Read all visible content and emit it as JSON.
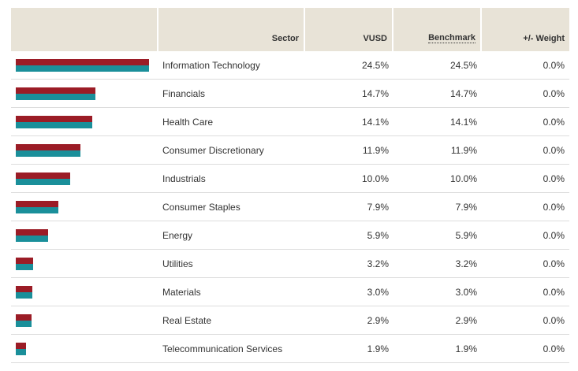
{
  "header": {
    "sector": "Sector",
    "fund": "VUSD",
    "benchmark": "Benchmark",
    "weight": "+/- Weight"
  },
  "colors": {
    "fund_bar": "#9b1c26",
    "benchmark_bar": "#1a8f9a",
    "header_bg": "#e8e3d7"
  },
  "rows": [
    {
      "sector": "Information Technology",
      "fund": "24.5%",
      "benchmark": "24.5%",
      "weight": "0.0%",
      "fund_value": 24.5,
      "bench_value": 24.5
    },
    {
      "sector": "Financials",
      "fund": "14.7%",
      "benchmark": "14.7%",
      "weight": "0.0%",
      "fund_value": 14.7,
      "bench_value": 14.7
    },
    {
      "sector": "Health Care",
      "fund": "14.1%",
      "benchmark": "14.1%",
      "weight": "0.0%",
      "fund_value": 14.1,
      "bench_value": 14.1
    },
    {
      "sector": "Consumer Discretionary",
      "fund": "11.9%",
      "benchmark": "11.9%",
      "weight": "0.0%",
      "fund_value": 11.9,
      "bench_value": 11.9
    },
    {
      "sector": "Industrials",
      "fund": "10.0%",
      "benchmark": "10.0%",
      "weight": "0.0%",
      "fund_value": 10.0,
      "bench_value": 10.0
    },
    {
      "sector": "Consumer Staples",
      "fund": "7.9%",
      "benchmark": "7.9%",
      "weight": "0.0%",
      "fund_value": 7.9,
      "bench_value": 7.9
    },
    {
      "sector": "Energy",
      "fund": "5.9%",
      "benchmark": "5.9%",
      "weight": "0.0%",
      "fund_value": 5.9,
      "bench_value": 5.9
    },
    {
      "sector": "Utilities",
      "fund": "3.2%",
      "benchmark": "3.2%",
      "weight": "0.0%",
      "fund_value": 3.2,
      "bench_value": 3.2
    },
    {
      "sector": "Materials",
      "fund": "3.0%",
      "benchmark": "3.0%",
      "weight": "0.0%",
      "fund_value": 3.0,
      "bench_value": 3.0
    },
    {
      "sector": "Real Estate",
      "fund": "2.9%",
      "benchmark": "2.9%",
      "weight": "0.0%",
      "fund_value": 2.9,
      "bench_value": 2.9
    },
    {
      "sector": "Telecommunication Services",
      "fund": "1.9%",
      "benchmark": "1.9%",
      "weight": "0.0%",
      "fund_value": 1.9,
      "bench_value": 1.9
    }
  ]
}
